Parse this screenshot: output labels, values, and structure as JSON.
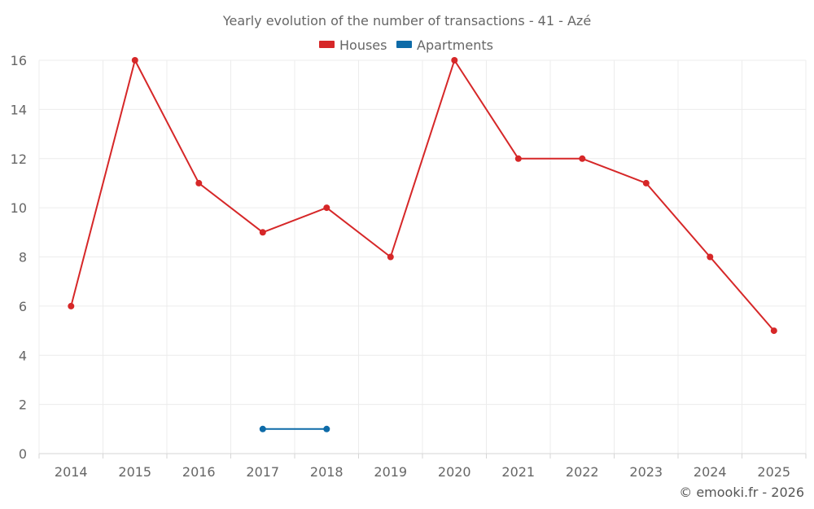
{
  "chart_data": {
    "type": "line",
    "title": "Yearly evolution of the number of transactions - 41 - Azé",
    "categories": [
      "2014",
      "2015",
      "2016",
      "2017",
      "2018",
      "2019",
      "2020",
      "2021",
      "2022",
      "2023",
      "2024",
      "2025"
    ],
    "ylim": [
      0,
      16
    ],
    "yticks": [
      0,
      2,
      4,
      6,
      8,
      10,
      12,
      14,
      16
    ],
    "grid": true,
    "legend_position": "top-center",
    "series": [
      {
        "name": "Houses",
        "color": "#d62728",
        "values": [
          6,
          16,
          11,
          9,
          10,
          8,
          16,
          12,
          12,
          11,
          8,
          5
        ]
      },
      {
        "name": "Apartments",
        "color": "#0e6ba8",
        "values": [
          null,
          null,
          null,
          1,
          1,
          null,
          null,
          null,
          null,
          null,
          null,
          null
        ]
      }
    ],
    "credit": "© emooki.fr - 2026"
  }
}
